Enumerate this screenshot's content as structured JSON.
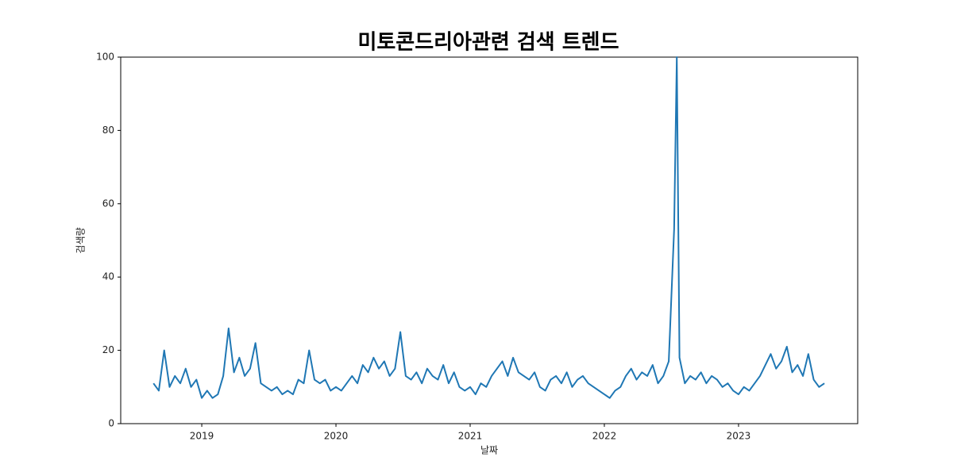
{
  "chart_data": {
    "type": "line",
    "title": "미토콘드리아관련 검색 트렌드",
    "xlabel": "날짜",
    "ylabel": "검색량",
    "x": [
      2018.64,
      2018.68,
      2018.72,
      2018.76,
      2018.8,
      2018.84,
      2018.88,
      2018.92,
      2018.96,
      2019.0,
      2019.04,
      2019.08,
      2019.12,
      2019.16,
      2019.2,
      2019.24,
      2019.28,
      2019.32,
      2019.36,
      2019.4,
      2019.44,
      2019.48,
      2019.52,
      2019.56,
      2019.6,
      2019.64,
      2019.68,
      2019.72,
      2019.76,
      2019.8,
      2019.84,
      2019.88,
      2019.92,
      2019.96,
      2020.0,
      2020.04,
      2020.08,
      2020.12,
      2020.16,
      2020.2,
      2020.24,
      2020.28,
      2020.32,
      2020.36,
      2020.4,
      2020.44,
      2020.48,
      2020.52,
      2020.56,
      2020.6,
      2020.64,
      2020.68,
      2020.72,
      2020.76,
      2020.8,
      2020.84,
      2020.88,
      2020.92,
      2020.96,
      2021.0,
      2021.04,
      2021.08,
      2021.12,
      2021.16,
      2021.2,
      2021.24,
      2021.28,
      2021.32,
      2021.36,
      2021.4,
      2021.44,
      2021.48,
      2021.52,
      2021.56,
      2021.6,
      2021.64,
      2021.68,
      2021.72,
      2021.76,
      2021.8,
      2021.84,
      2021.88,
      2021.92,
      2021.96,
      2022.0,
      2022.04,
      2022.08,
      2022.12,
      2022.16,
      2022.2,
      2022.24,
      2022.28,
      2022.32,
      2022.36,
      2022.4,
      2022.44,
      2022.48,
      2022.52,
      2022.54,
      2022.56,
      2022.6,
      2022.64,
      2022.68,
      2022.72,
      2022.76,
      2022.8,
      2022.84,
      2022.88,
      2022.92,
      2022.96,
      2023.0,
      2023.04,
      2023.08,
      2023.12,
      2023.16,
      2023.2,
      2023.24,
      2023.28,
      2023.32,
      2023.36,
      2023.4,
      2023.44,
      2023.48,
      2023.52,
      2023.56,
      2023.6,
      2023.64
    ],
    "series": [
      {
        "name": "검색량",
        "color": "#1f77b4",
        "values": [
          11,
          9,
          20,
          10,
          13,
          11,
          15,
          10,
          12,
          7,
          9,
          7,
          8,
          13,
          26,
          14,
          18,
          13,
          15,
          22,
          11,
          10,
          9,
          10,
          8,
          9,
          8,
          12,
          11,
          20,
          12,
          11,
          12,
          9,
          10,
          9,
          11,
          13,
          11,
          16,
          14,
          18,
          15,
          17,
          13,
          15,
          25,
          13,
          12,
          14,
          11,
          15,
          13,
          12,
          16,
          11,
          14,
          10,
          9,
          10,
          8,
          11,
          10,
          13,
          15,
          17,
          13,
          18,
          14,
          13,
          12,
          14,
          10,
          9,
          12,
          13,
          11,
          14,
          10,
          12,
          13,
          11,
          10,
          9,
          8,
          7,
          9,
          10,
          13,
          15,
          12,
          14,
          13,
          16,
          11,
          13,
          17,
          53,
          100,
          18,
          11,
          13,
          12,
          14,
          11,
          13,
          12,
          10,
          11,
          9,
          8,
          10,
          9,
          11,
          13,
          16,
          19,
          15,
          17,
          21,
          14,
          16,
          13,
          19,
          12,
          10,
          11
        ]
      }
    ],
    "xlim": [
      2018.396,
      2023.888
    ],
    "xticks": [
      2019,
      2020,
      2021,
      2022,
      2023
    ],
    "ylim": [
      0,
      100
    ],
    "yticks": [
      0,
      20,
      40,
      60,
      80,
      100
    ]
  }
}
